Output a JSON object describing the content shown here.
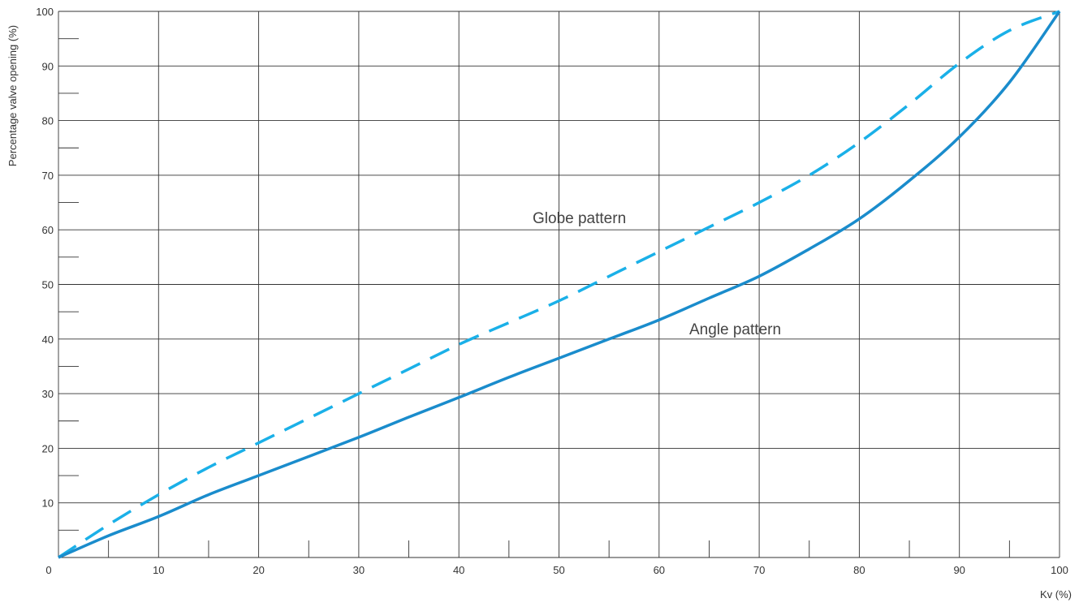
{
  "chart_data": {
    "type": "line",
    "title": "",
    "xlabel": "Kv (%)",
    "ylabel": "Percentage valve opening (%)",
    "xlim": [
      0,
      100
    ],
    "ylim": [
      0,
      100
    ],
    "grid": true,
    "x_ticks": [
      "0",
      "10",
      "20",
      "30",
      "40",
      "50",
      "60",
      "70",
      "80",
      "90",
      "100"
    ],
    "y_ticks": [
      "10",
      "20",
      "30",
      "40",
      "50",
      "60",
      "70",
      "80",
      "90",
      "100"
    ],
    "colors": {
      "globe": "#1ab0e8",
      "angle": "#1a8ccc",
      "grid": "#333333",
      "text": "#333333"
    },
    "series": [
      {
        "name": "Globe pattern",
        "style": "dashed",
        "x": [
          0,
          5,
          10,
          15,
          20,
          25,
          30,
          35,
          40,
          45,
          50,
          55,
          60,
          65,
          70,
          75,
          80,
          85,
          90,
          95,
          100
        ],
        "y": [
          0,
          6,
          11.5,
          16.5,
          21,
          25.5,
          30,
          34.5,
          39,
          43,
          47,
          51.5,
          56,
          60.5,
          65,
          70,
          76,
          83,
          90.5,
          96.5,
          100
        ]
      },
      {
        "name": "Angle pattern",
        "style": "solid",
        "x": [
          0,
          5,
          10,
          15,
          20,
          25,
          30,
          35,
          40,
          45,
          50,
          55,
          60,
          65,
          70,
          75,
          80,
          85,
          90,
          95,
          100
        ],
        "y": [
          0,
          4,
          7.5,
          11.5,
          15,
          18.5,
          22,
          25.7,
          29.3,
          33,
          36.5,
          40,
          43.5,
          47.5,
          51.5,
          56.5,
          62,
          69,
          77,
          87,
          100
        ]
      }
    ]
  }
}
